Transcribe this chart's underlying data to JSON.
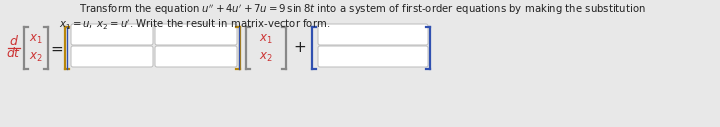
{
  "bg_color": "#e8e8e8",
  "box_fill": "#ffffff",
  "bracket_color_orange": "#b8860b",
  "bracket_color_blue": "#3050b0",
  "bracket_color_gray": "#888888",
  "text_color_red": "#cc3333",
  "text_color_dark": "#222222",
  "fig_width": 7.2,
  "fig_height": 1.27,
  "dpi": 100,
  "line1": "Transform the equation $u'' + 4u' + 7u = 9\\,\\sin 8t$ into a system of first-order equations by making the substitution",
  "line2": "$x_1 = u,\\; x_2 = u'$. Write the result in matrix-vector form."
}
